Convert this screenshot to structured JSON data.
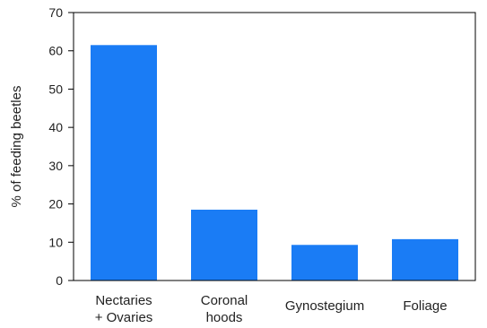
{
  "chart_data": {
    "type": "bar",
    "categories": [
      [
        "Nectaries",
        "+ Ovaries"
      ],
      [
        "Coronal",
        "hoods"
      ],
      [
        "Gynostegium"
      ],
      [
        "Foliage"
      ]
    ],
    "values": [
      61.5,
      18.5,
      9.3,
      10.8
    ],
    "ylabel": "% of feeding beetles",
    "xlabel": "",
    "title": "",
    "ylim": [
      0,
      70
    ],
    "yticks": [
      0,
      10,
      20,
      30,
      40,
      50,
      60,
      70
    ],
    "grid": false,
    "legend": "none",
    "bar_color": "#1a7cf5"
  }
}
